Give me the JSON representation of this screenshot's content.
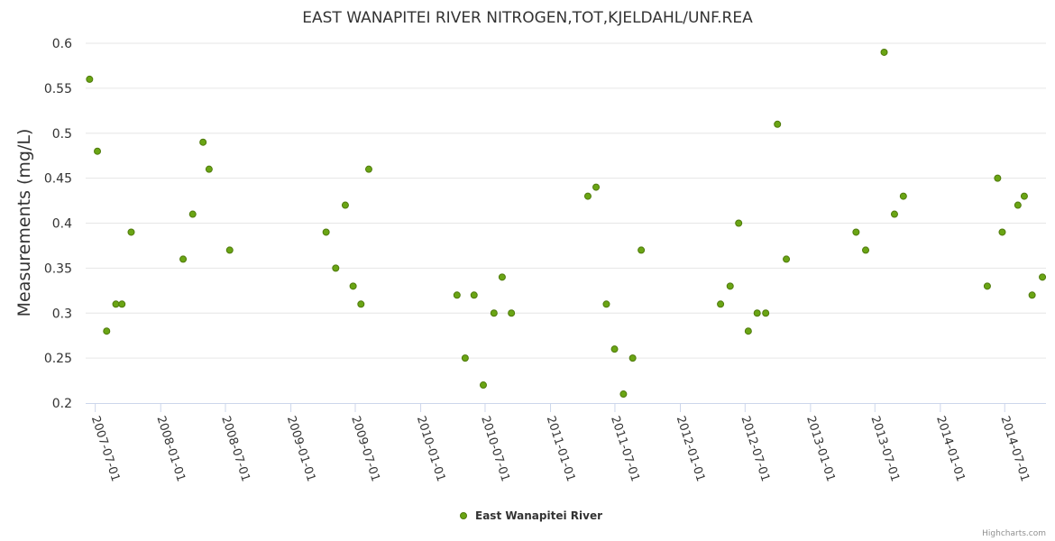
{
  "chart_data": {
    "type": "scatter",
    "title": "EAST WANAPITEI RIVER NITROGEN,TOT,KJELDAHL/UNF.REA",
    "ylabel": "Measurements (mg/L)",
    "xlabel": "",
    "ylim": [
      0.2,
      0.6
    ],
    "yticks": [
      "0.2",
      "0.25",
      "0.3",
      "0.35",
      "0.4",
      "0.45",
      "0.5",
      "0.55",
      "0.6"
    ],
    "xlim": [
      "2007-06-04",
      "2014-10-25"
    ],
    "xticks": [
      "2007-07-01",
      "2008-01-01",
      "2008-07-01",
      "2009-01-01",
      "2009-07-01",
      "2010-01-01",
      "2010-07-01",
      "2011-01-01",
      "2011-07-01",
      "2012-01-01",
      "2012-07-01",
      "2013-01-01",
      "2013-07-01",
      "2014-01-01",
      "2014-07-01"
    ],
    "grid": true,
    "legend_position": "bottom-center",
    "credits": "Highcharts.com",
    "colors": {
      "marker_fill": "#6aa514",
      "marker_stroke": "#4f7a0c",
      "grid": "#e6e6e6",
      "axis": "#ccd6eb"
    },
    "series": [
      {
        "name": "East Wanapitei River",
        "points": [
          {
            "x": "2007-06-15",
            "y": 0.56
          },
          {
            "x": "2007-07-07",
            "y": 0.48
          },
          {
            "x": "2007-08-02",
            "y": 0.28
          },
          {
            "x": "2007-08-28",
            "y": 0.31
          },
          {
            "x": "2007-09-14",
            "y": 0.31
          },
          {
            "x": "2007-10-10",
            "y": 0.39
          },
          {
            "x": "2008-03-04",
            "y": 0.36
          },
          {
            "x": "2008-03-31",
            "y": 0.41
          },
          {
            "x": "2008-04-29",
            "y": 0.49
          },
          {
            "x": "2008-05-16",
            "y": 0.46
          },
          {
            "x": "2008-07-13",
            "y": 0.37
          },
          {
            "x": "2009-04-10",
            "y": 0.39
          },
          {
            "x": "2009-05-07",
            "y": 0.35
          },
          {
            "x": "2009-06-03",
            "y": 0.42
          },
          {
            "x": "2009-06-25",
            "y": 0.33
          },
          {
            "x": "2009-07-17",
            "y": 0.31
          },
          {
            "x": "2009-08-08",
            "y": 0.46
          },
          {
            "x": "2010-04-13",
            "y": 0.32
          },
          {
            "x": "2010-05-06",
            "y": 0.25
          },
          {
            "x": "2010-05-31",
            "y": 0.32
          },
          {
            "x": "2010-06-26",
            "y": 0.22
          },
          {
            "x": "2010-07-26",
            "y": 0.3
          },
          {
            "x": "2010-08-18",
            "y": 0.34
          },
          {
            "x": "2010-09-13",
            "y": 0.3
          },
          {
            "x": "2011-04-16",
            "y": 0.43
          },
          {
            "x": "2011-05-09",
            "y": 0.44
          },
          {
            "x": "2011-06-07",
            "y": 0.31
          },
          {
            "x": "2011-06-30",
            "y": 0.26
          },
          {
            "x": "2011-07-25",
            "y": 0.21
          },
          {
            "x": "2011-08-20",
            "y": 0.25
          },
          {
            "x": "2011-09-13",
            "y": 0.37
          },
          {
            "x": "2012-04-23",
            "y": 0.31
          },
          {
            "x": "2012-05-20",
            "y": 0.33
          },
          {
            "x": "2012-06-13",
            "y": 0.4
          },
          {
            "x": "2012-07-10",
            "y": 0.28
          },
          {
            "x": "2012-08-04",
            "y": 0.3
          },
          {
            "x": "2012-08-28",
            "y": 0.3
          },
          {
            "x": "2012-09-30",
            "y": 0.51
          },
          {
            "x": "2012-10-25",
            "y": 0.36
          },
          {
            "x": "2013-05-09",
            "y": 0.39
          },
          {
            "x": "2013-06-05",
            "y": 0.37
          },
          {
            "x": "2013-07-27",
            "y": 0.59
          },
          {
            "x": "2013-08-25",
            "y": 0.41
          },
          {
            "x": "2013-09-19",
            "y": 0.43
          },
          {
            "x": "2014-05-13",
            "y": 0.33
          },
          {
            "x": "2014-06-11",
            "y": 0.45
          },
          {
            "x": "2014-06-24",
            "y": 0.39
          },
          {
            "x": "2014-08-07",
            "y": 0.42
          },
          {
            "x": "2014-08-25",
            "y": 0.43
          },
          {
            "x": "2014-09-16",
            "y": 0.32
          },
          {
            "x": "2014-10-15",
            "y": 0.34
          }
        ]
      }
    ]
  }
}
